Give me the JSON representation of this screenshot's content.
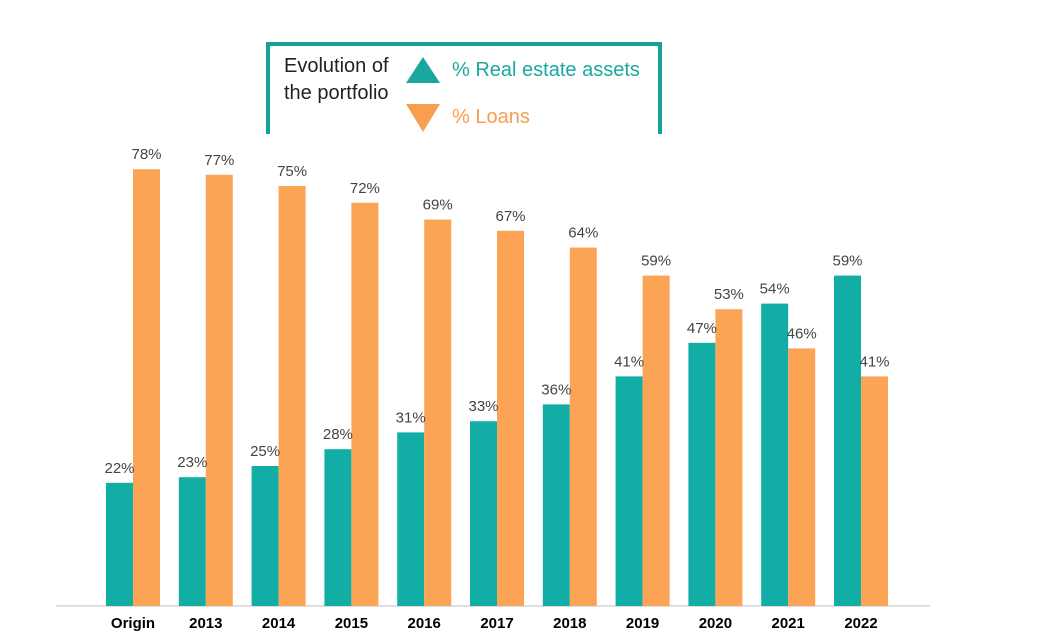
{
  "legend": {
    "title": "Evolution of the portfolio",
    "items": [
      {
        "label": "% Real estate assets",
        "icon": "triangle-up-icon",
        "color": "#1aa89e"
      },
      {
        "label": "% Loans",
        "icon": "triangle-down-icon",
        "color": "#f79f4f"
      }
    ],
    "border_color": "#14a39a"
  },
  "chart_data": {
    "type": "bar",
    "categories": [
      "Origin",
      "2013",
      "2014",
      "2015",
      "2016",
      "2017",
      "2018",
      "2019",
      "2020",
      "2021",
      "2022"
    ],
    "series": [
      {
        "name": "% Real estate assets",
        "color": "#12aea6",
        "values": [
          22,
          23,
          25,
          28,
          31,
          33,
          36,
          41,
          47,
          54,
          59
        ],
        "labels": [
          "22%",
          "23%",
          "25%",
          "28%",
          "31%",
          "33%",
          "36%",
          "41%",
          "47%",
          "54%",
          "59%"
        ]
      },
      {
        "name": "% Loans",
        "color": "#fba456",
        "values": [
          78,
          77,
          75,
          72,
          69,
          67,
          64,
          59,
          53,
          46,
          41
        ],
        "labels": [
          "78%",
          "77%",
          "75%",
          "72%",
          "69%",
          "67%",
          "64%",
          "59%",
          "53%",
          "46%",
          "41%"
        ]
      }
    ],
    "ylim": [
      0,
      100
    ],
    "grid": false,
    "legend_position": "top"
  }
}
